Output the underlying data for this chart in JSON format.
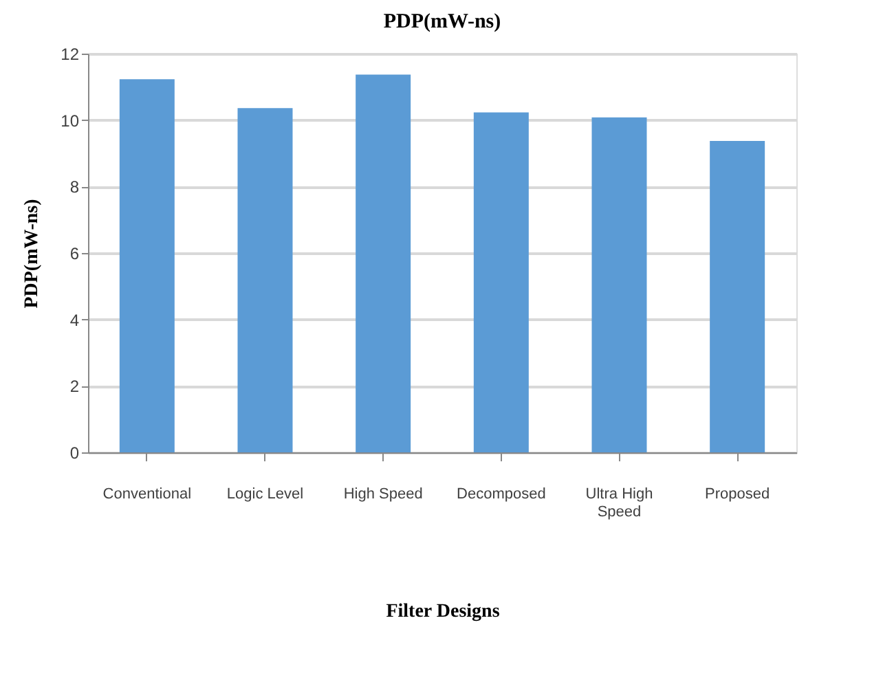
{
  "chart_data": {
    "type": "bar",
    "title": "PDP(mW-ns)",
    "xlabel": "Filter Designs",
    "ylabel": "PDP(mW-ns)",
    "categories": [
      "Conventional",
      "Logic Level",
      "High Speed",
      "Decomposed",
      "Ultra High Speed",
      "Proposed"
    ],
    "values": [
      11.23,
      10.36,
      11.37,
      10.23,
      10.08,
      9.37
    ],
    "color": "#5b9bd5",
    "ylim": [
      0,
      12
    ],
    "yticks": [
      0,
      2,
      4,
      6,
      8,
      10,
      12
    ],
    "grid": "y"
  }
}
